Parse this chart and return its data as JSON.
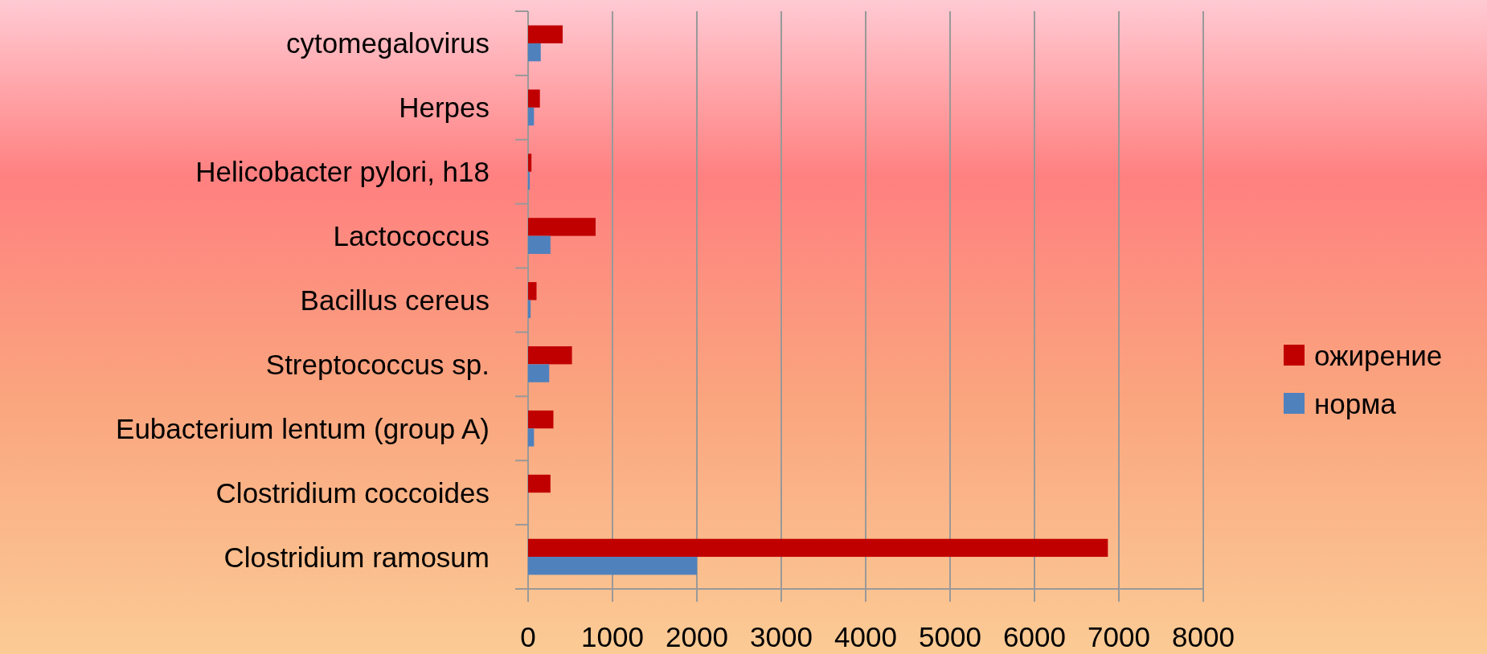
{
  "chart_data": {
    "type": "bar",
    "orientation": "horizontal",
    "categories": [
      "cytomegalovirus",
      "Herpes",
      "Helicobacter pylori, h18",
      "Lactococcus",
      "Bacillus cereus",
      "Streptococcus sp.",
      "Eubacterium lentum (group A)",
      "Clostridium coccoides",
      "Clostridium ramosum"
    ],
    "series": [
      {
        "name": "ожирение",
        "color": "#c00000",
        "values": [
          410,
          140,
          40,
          800,
          100,
          520,
          300,
          265,
          6870
        ]
      },
      {
        "name": "норма",
        "color": "#4f81bd",
        "values": [
          150,
          70,
          20,
          265,
          30,
          250,
          70,
          0,
          2000
        ]
      }
    ],
    "xlim": [
      0,
      8000
    ],
    "xticks": [
      0,
      1000,
      2000,
      3000,
      4000,
      5000,
      6000,
      7000,
      8000
    ],
    "grid": "x",
    "legend": "right"
  }
}
